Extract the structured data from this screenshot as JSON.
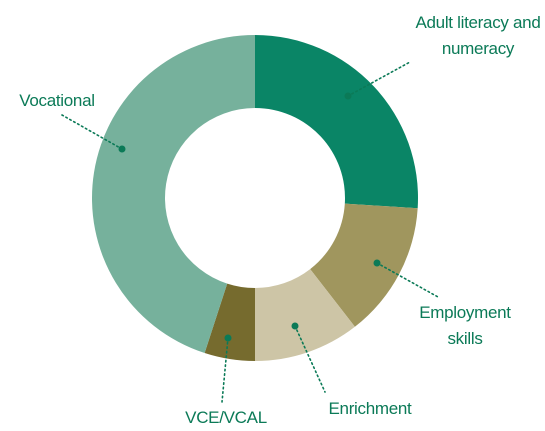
{
  "chart_data": {
    "type": "donut",
    "categories": [
      "Adult literacy and numeracy",
      "Employment skills",
      "Enrichment",
      "VCE/VCAL",
      "Vocational"
    ],
    "values": [
      26,
      13.5,
      10.5,
      5,
      45
    ],
    "colors": [
      "#0a8566",
      "#a0965e",
      "#cdc5a6",
      "#766b2e",
      "#76b19c"
    ]
  }
}
